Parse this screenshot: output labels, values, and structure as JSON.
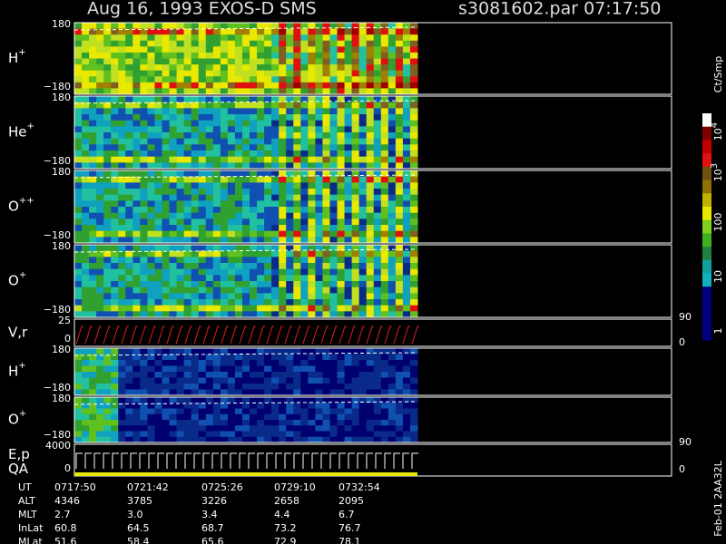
{
  "header": {
    "title": "Aug 16, 1993   EXOS-D SMS",
    "file": "s3081602.par  07:17:50"
  },
  "panels": [
    {
      "ion": "H",
      "charge": "+",
      "ticks": [
        "180",
        "−180"
      ]
    },
    {
      "ion": "He",
      "charge": "+",
      "ticks": [
        "180",
        "−180"
      ]
    },
    {
      "ion": "O",
      "charge": "++",
      "ticks": [
        "180",
        "−180"
      ]
    },
    {
      "ion": "O",
      "charge": "+",
      "ticks": [
        "180",
        "−180"
      ]
    },
    {
      "ion": "V,r",
      "charge": "",
      "ticks": [
        "25",
        "0"
      ],
      "right_ticks": [
        "90",
        "0"
      ]
    },
    {
      "ion": "H",
      "charge": "+",
      "ticks": [
        "180",
        "−180"
      ]
    },
    {
      "ion": "O",
      "charge": "+",
      "ticks": [
        "180",
        "−180"
      ],
      "right_ticks": [
        "90"
      ]
    },
    {
      "ion": "E,p",
      "charge": "",
      "sub": "QA",
      "ticks": [
        "4000",
        "0"
      ],
      "right_ticks": [
        "0"
      ]
    }
  ],
  "colorbar": {
    "unit": "Ct/Smp",
    "labels": [
      {
        "base": "10",
        "exp": "4"
      },
      {
        "base": "10",
        "exp": "3"
      },
      {
        "base": "100",
        "exp": ""
      },
      {
        "base": "10",
        "exp": ""
      },
      {
        "base": "1",
        "exp": ""
      }
    ]
  },
  "footer": {
    "rows": [
      {
        "name": "UT",
        "values": [
          "0717:50",
          "0721:42",
          "0725:26",
          "0729:10",
          "0732:54"
        ]
      },
      {
        "name": "ALT",
        "values": [
          "4346",
          "3785",
          "3226",
          "2658",
          "2095"
        ]
      },
      {
        "name": "MLT",
        "values": [
          "2.7",
          "3.0",
          "3.4",
          "4.4",
          "6.7"
        ]
      },
      {
        "name": "InLat",
        "values": [
          "60.8",
          "64.5",
          "68.7",
          "73.2",
          "76.7"
        ]
      },
      {
        "name": "MLat",
        "values": [
          "51.6",
          "58.4",
          "65.6",
          "72.9",
          "78.1"
        ]
      }
    ],
    "stamp": "Feb-01 2AA32L"
  }
}
